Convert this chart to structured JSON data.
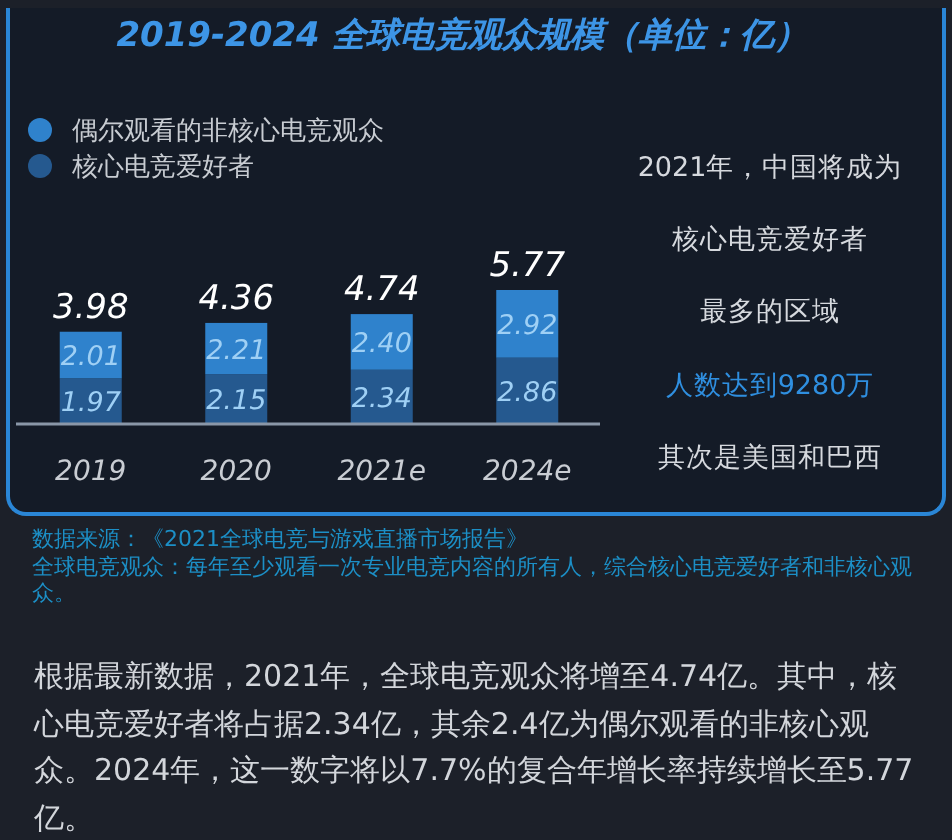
{
  "chart_data": {
    "type": "bar",
    "title": "2019-2024 全球电竞观众规模（单位：亿）",
    "categories": [
      "2019",
      "2020",
      "2021e",
      "2024e"
    ],
    "stacked": true,
    "legend": "top left",
    "series": [
      {
        "name": "核心电竞爱好者",
        "color": "#25598f",
        "values": [
          1.97,
          2.15,
          2.34,
          2.86
        ],
        "value_labels": [
          "1.97",
          "2.15",
          "2.34",
          "2.86"
        ]
      },
      {
        "name": "偶尔观看的非核心电竞观众",
        "color": "#2f82cc",
        "values": [
          2.01,
          2.21,
          2.4,
          2.92
        ],
        "value_labels": [
          "2.01",
          "2.21",
          "2.40",
          "2.92"
        ]
      }
    ],
    "totals": [
      "3.98",
      "4.36",
      "4.74",
      "5.77"
    ],
    "annotations": [
      "2021年，中国将成为",
      "核心电竞爱好者",
      "最多的区域",
      "人数达到9280万",
      "其次是美国和巴西",
      "数据来源：《2021全球电竞与游戏直播市场报告》",
      "全球电竞观众：每年至少观看一次专业电竞内容的所有人，综合核心电竞爱好者和非核心观众。",
      "根据最新数据，2021年，全球电竞观众将增至4.74亿。其中，核心电竞爱好者将占据2.34亿，其余2.4亿为偶尔观看的非核心观众。2024年，这一数字将以7.7%的复合年增长率持续增长至5.77亿。"
    ]
  }
}
